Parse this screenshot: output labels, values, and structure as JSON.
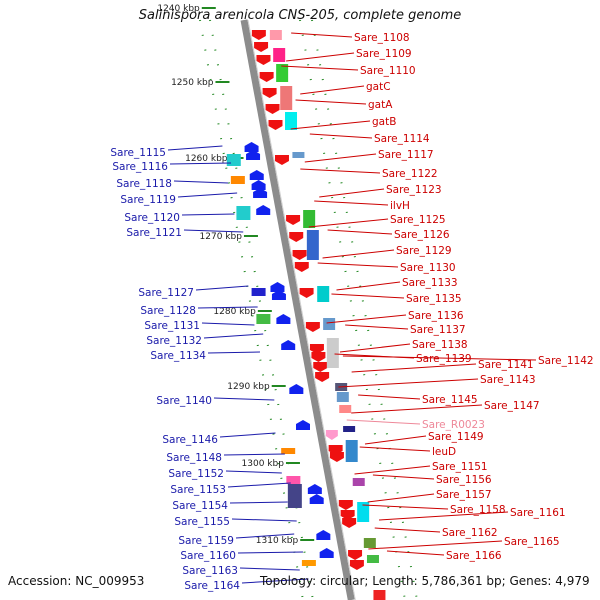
{
  "title": "Salinispora arenicola CNS-205, complete genome",
  "footer": {
    "accession": "Accession: NC_009953",
    "topology": "Topology: circular; Length: 5,786,361 bp; Genes: 4,979"
  },
  "colors": {
    "forward_label": "#cc0000",
    "reverse_label": "#1a1aaa",
    "rna_label": "#ee8899",
    "backbone": "#8c8c8c",
    "tick": "#228822"
  },
  "scale_labels": [
    "1240 kbp",
    "1250 kbp",
    "1260 kbp",
    "1270 kbp",
    "1280 kbp",
    "1290 kbp",
    "1300 kbp",
    "1310 kbp"
  ],
  "right_labels": [
    "Sare_1108",
    "Sare_1109",
    "Sare_1110",
    "gatC",
    "gatA",
    "gatB",
    "Sare_1114",
    "Sare_1117",
    "Sare_1122",
    "Sare_1123",
    "ilvH",
    "Sare_1125",
    "Sare_1126",
    "Sare_1129",
    "Sare_1130",
    "Sare_1133",
    "Sare_1135",
    "Sare_1136",
    "Sare_1137",
    "Sare_1138",
    "Sare_1139",
    "Sare_1141",
    "Sare_1142",
    "Sare_1143",
    "Sare_1145",
    "Sare_1147",
    "Sare_R0023",
    "Sare_1149",
    "leuD",
    "Sare_1151",
    "Sare_1156",
    "Sare_1157",
    "Sare_1158",
    "Sare_1161",
    "Sare_1162",
    "Sare_1165",
    "Sare_1166"
  ],
  "left_labels": [
    "Sare_1115",
    "Sare_1116",
    "Sare_1118",
    "Sare_1119",
    "Sare_1120",
    "Sare_1121",
    "Sare_1127",
    "Sare_1128",
    "Sare_1131",
    "Sare_1132",
    "Sare_1134",
    "Sare_1140",
    "Sare_1146",
    "Sare_1148",
    "Sare_1152",
    "Sare_1153",
    "Sare_1154",
    "Sare_1155",
    "Sare_1159",
    "Sare_1160",
    "Sare_1163",
    "Sare_1164"
  ]
}
